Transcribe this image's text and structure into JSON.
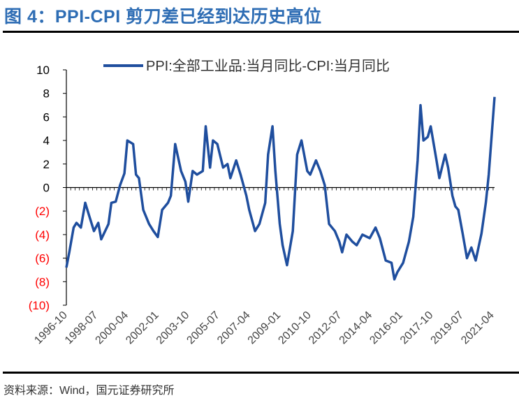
{
  "title": "图 4：PPI-CPI 剪刀差已经到达历史高位",
  "source": "资料来源：Wind，国元证券研究所",
  "chart_data": {
    "type": "line",
    "title": "",
    "xlabel": "",
    "ylabel": "",
    "ylim": [
      -10,
      10
    ],
    "y_ticks": [
      10,
      8,
      6,
      4,
      2,
      0,
      -2,
      -4,
      -6,
      -8,
      -10
    ],
    "y_tick_labels": [
      "10",
      "8",
      "6",
      "4",
      "2",
      "0",
      "(2)",
      "(4)",
      "(6)",
      "(8)",
      "(10)"
    ],
    "negative_label_color": "#ff0000",
    "x_tick_labels": [
      "1996-10",
      "1998-07",
      "2000-04",
      "2002-01",
      "2003-10",
      "2005-07",
      "2007-04",
      "2009-01",
      "2010-10",
      "2012-07",
      "2014-04",
      "2016-01",
      "2017-10",
      "2019-07",
      "2021-04"
    ],
    "xlim": [
      "1996-10",
      "2021-05"
    ],
    "grid": false,
    "legend_placement": "top",
    "series": [
      {
        "name": "PPI:全部工业品:当月同比-CPI:当月同比",
        "color": "#1f4e9e",
        "points": [
          [
            "1996-10",
            -6.8
          ],
          [
            "1996-12",
            -5.5
          ],
          [
            "1997-03",
            -3.4
          ],
          [
            "1997-05",
            -3.0
          ],
          [
            "1997-08",
            -3.4
          ],
          [
            "1997-11",
            -1.3
          ],
          [
            "1998-02",
            -2.5
          ],
          [
            "1998-05",
            -3.7
          ],
          [
            "1998-08",
            -3.0
          ],
          [
            "1998-10",
            -4.4
          ],
          [
            "1999-03",
            -3.1
          ],
          [
            "1999-05",
            -1.3
          ],
          [
            "1999-08",
            -1.2
          ],
          [
            "1999-11",
            0.2
          ],
          [
            "2000-02",
            1.2
          ],
          [
            "2000-04",
            4.0
          ],
          [
            "2000-08",
            3.7
          ],
          [
            "2000-10",
            1.1
          ],
          [
            "2000-12",
            0.8
          ],
          [
            "2001-03",
            -1.9
          ],
          [
            "2001-07",
            -3.1
          ],
          [
            "2001-10",
            -3.7
          ],
          [
            "2002-01",
            -4.2
          ],
          [
            "2002-04",
            -1.9
          ],
          [
            "2002-08",
            -1.3
          ],
          [
            "2002-10",
            -0.7
          ],
          [
            "2003-01",
            3.7
          ],
          [
            "2003-05",
            1.4
          ],
          [
            "2003-08",
            0.5
          ],
          [
            "2003-10",
            -1.2
          ],
          [
            "2004-01",
            1.4
          ],
          [
            "2004-04",
            1.1
          ],
          [
            "2004-08",
            1.4
          ],
          [
            "2004-10",
            5.2
          ],
          [
            "2005-01",
            1.7
          ],
          [
            "2005-03",
            4.0
          ],
          [
            "2005-06",
            3.7
          ],
          [
            "2005-10",
            1.7
          ],
          [
            "2006-01",
            2.0
          ],
          [
            "2006-03",
            0.8
          ],
          [
            "2006-07",
            2.3
          ],
          [
            "2006-10",
            1.1
          ],
          [
            "2007-02",
            -0.7
          ],
          [
            "2007-04",
            -1.9
          ],
          [
            "2007-08",
            -3.7
          ],
          [
            "2007-11",
            -3.1
          ],
          [
            "2008-03",
            -1.3
          ],
          [
            "2008-05",
            2.8
          ],
          [
            "2008-08",
            5.2
          ],
          [
            "2008-10",
            1.4
          ],
          [
            "2009-01",
            -3.1
          ],
          [
            "2009-03",
            -4.9
          ],
          [
            "2009-06",
            -6.6
          ],
          [
            "2009-10",
            -3.7
          ],
          [
            "2010-01",
            2.8
          ],
          [
            "2010-04",
            4.0
          ],
          [
            "2010-08",
            1.4
          ],
          [
            "2010-10",
            1.1
          ],
          [
            "2011-02",
            2.3
          ],
          [
            "2011-05",
            1.4
          ],
          [
            "2011-08",
            0.2
          ],
          [
            "2011-11",
            -3.1
          ],
          [
            "2012-03",
            -3.7
          ],
          [
            "2012-06",
            -4.6
          ],
          [
            "2012-08",
            -5.5
          ],
          [
            "2012-11",
            -4.0
          ],
          [
            "2013-03",
            -4.6
          ],
          [
            "2013-06",
            -4.9
          ],
          [
            "2013-10",
            -4.0
          ],
          [
            "2014-03",
            -4.3
          ],
          [
            "2014-07",
            -3.4
          ],
          [
            "2014-10",
            -4.3
          ],
          [
            "2015-02",
            -6.2
          ],
          [
            "2015-06",
            -6.4
          ],
          [
            "2015-08",
            -7.8
          ],
          [
            "2015-10",
            -7.2
          ],
          [
            "2016-02",
            -6.4
          ],
          [
            "2016-06",
            -4.6
          ],
          [
            "2016-09",
            -2.5
          ],
          [
            "2016-12",
            2.3
          ],
          [
            "2017-02",
            7.0
          ],
          [
            "2017-04",
            4.0
          ],
          [
            "2017-07",
            4.3
          ],
          [
            "2017-09",
            5.2
          ],
          [
            "2018-01",
            2.3
          ],
          [
            "2018-03",
            0.8
          ],
          [
            "2018-07",
            2.8
          ],
          [
            "2018-09",
            1.7
          ],
          [
            "2018-12",
            -0.7
          ],
          [
            "2019-02",
            -1.6
          ],
          [
            "2019-04",
            -1.9
          ],
          [
            "2019-07",
            -3.9
          ],
          [
            "2019-10",
            -6.0
          ],
          [
            "2020-01",
            -5.1
          ],
          [
            "2020-04",
            -6.2
          ],
          [
            "2020-08",
            -3.9
          ],
          [
            "2020-11",
            -1.3
          ],
          [
            "2021-01",
            1.1
          ],
          [
            "2021-05",
            7.7
          ]
        ]
      }
    ]
  }
}
